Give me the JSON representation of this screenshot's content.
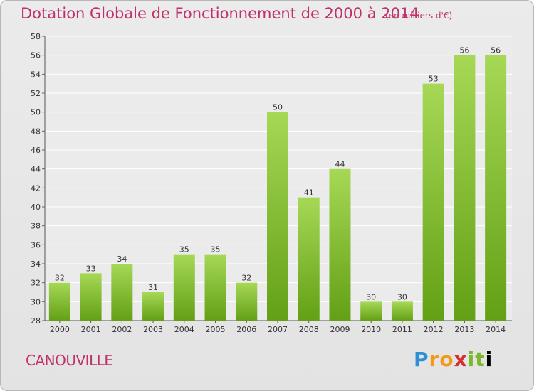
{
  "header": {
    "title": "Dotation Globale de Fonctionnement de 2000 à 2014",
    "unit": "(en milliers d'€)"
  },
  "footer": {
    "commune": "CANOUVILLE",
    "logo_letters": [
      "P",
      "r",
      "o",
      "x",
      "i",
      "t",
      "i"
    ]
  },
  "colors": {
    "bar_light": "#9fd34b",
    "bar_dark": "#6aa219",
    "title": "#c0306b"
  },
  "chart_data": {
    "type": "bar",
    "categories": [
      "2000",
      "2001",
      "2002",
      "2003",
      "2004",
      "2005",
      "2006",
      "2007",
      "2008",
      "2009",
      "2010",
      "2011",
      "2012",
      "2013",
      "2014"
    ],
    "values": [
      32,
      33,
      34,
      31,
      35,
      35,
      32,
      50,
      41,
      44,
      30,
      30,
      53,
      56,
      56
    ],
    "title": "Dotation Globale de Fonctionnement de 2000 à 2014",
    "ylim": [
      28,
      58
    ],
    "yticks": [
      28,
      30,
      32,
      34,
      36,
      38,
      40,
      42,
      44,
      46,
      48,
      50,
      52,
      54,
      56,
      58
    ],
    "grid": true,
    "data_labels": true
  }
}
